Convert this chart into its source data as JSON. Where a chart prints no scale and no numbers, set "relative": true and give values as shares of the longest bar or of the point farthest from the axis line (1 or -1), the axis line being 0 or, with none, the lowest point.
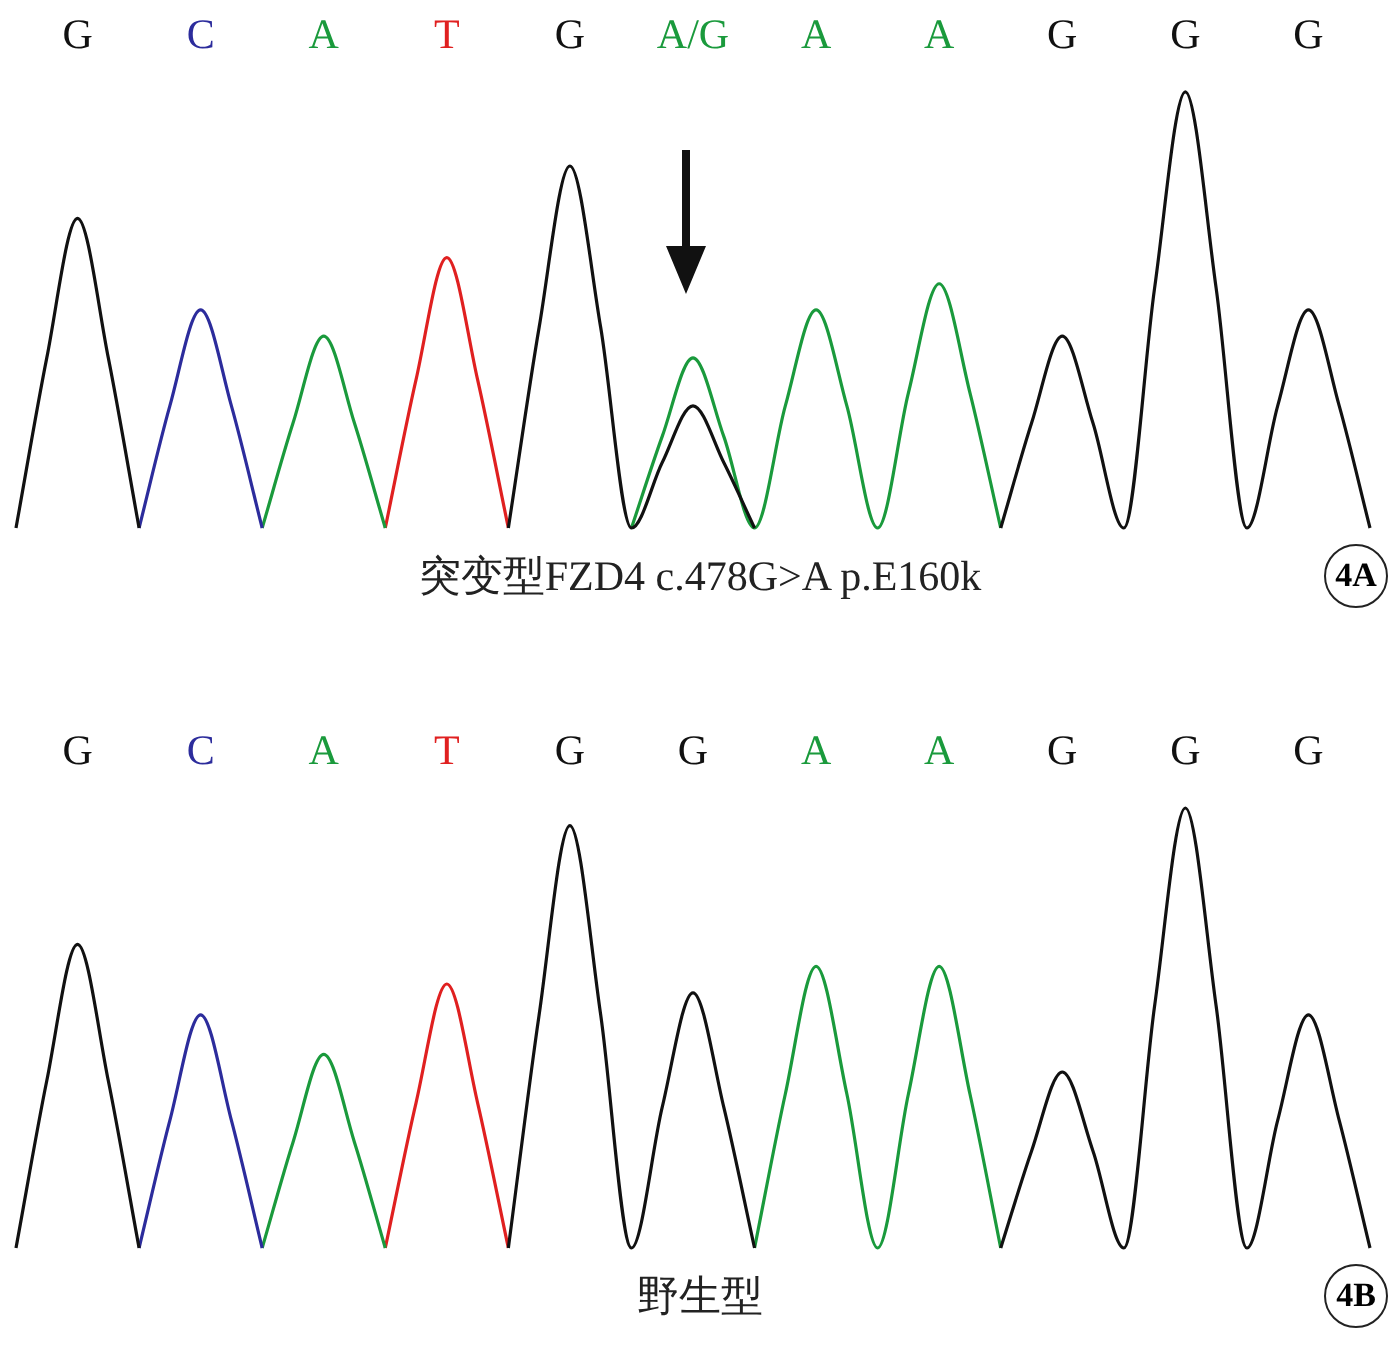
{
  "chart_data": [
    {
      "type": "line",
      "relative": true,
      "title": "4A",
      "tick_labels": "x",
      "grid": false,
      "legend": false,
      "marker": "none",
      "line_style": "solid",
      "annotations": [
        "突变型FZD4 c.478G>A p.E160k"
      ],
      "categories": [
        null,
        null,
        "G",
        null,
        null,
        null,
        "C",
        null,
        null,
        null,
        "A",
        null,
        null,
        null,
        "T",
        null,
        null,
        null,
        "G",
        null,
        null,
        null,
        "A/G",
        null,
        null,
        null,
        "A",
        null,
        null,
        null,
        "A",
        null,
        null,
        null,
        "G",
        null,
        null,
        null,
        "G",
        null,
        null,
        null,
        "G",
        null,
        null
      ],
      "series": [
        {
          "color": "#111111",
          "values": [
            0,
            0.39,
            0.71,
            0.39,
            0,
            null,
            null,
            null,
            null,
            null,
            null,
            null,
            null,
            null,
            null,
            null,
            0,
            0.46,
            0.83,
            0.46,
            0,
            0.15,
            0.28,
            0.15,
            0,
            null,
            null,
            null,
            null,
            null,
            null,
            null,
            0,
            0.24,
            0.44,
            0.24,
            0,
            0.55,
            1,
            0.55,
            0,
            0.28,
            0.5,
            0.28,
            0
          ]
        },
        {
          "color": "#2c2c9c",
          "values": [
            null,
            null,
            null,
            null,
            0,
            0.28,
            0.5,
            0.28,
            0,
            null,
            null,
            null,
            null,
            null,
            null,
            null,
            null,
            null,
            null,
            null,
            null,
            null,
            null,
            null,
            null,
            null,
            null,
            null,
            null,
            null,
            null,
            null,
            null,
            null,
            null,
            null,
            null,
            null,
            null,
            null,
            null,
            null,
            null,
            null,
            null
          ]
        },
        {
          "color": "#1a9a3c",
          "values": [
            null,
            null,
            null,
            null,
            null,
            null,
            null,
            null,
            0,
            0.24,
            0.44,
            0.24,
            0,
            null,
            null,
            null,
            null,
            null,
            null,
            null,
            0,
            0.21,
            0.39,
            0.21,
            0,
            0.28,
            0.5,
            0.28,
            0,
            0.31,
            0.56,
            0.31,
            0,
            null,
            null,
            null,
            null,
            null,
            null,
            null,
            null,
            null,
            null,
            null,
            null
          ]
        },
        {
          "color": "#e02020",
          "values": [
            null,
            null,
            null,
            null,
            null,
            null,
            null,
            null,
            null,
            null,
            null,
            null,
            0,
            0.34,
            0.62,
            0.34,
            0,
            null,
            null,
            null,
            null,
            null,
            null,
            null,
            null,
            null,
            null,
            null,
            null,
            null,
            null,
            null,
            null,
            null,
            null,
            null,
            null,
            null,
            null,
            null,
            null,
            null,
            null,
            null,
            null
          ]
        }
      ]
    },
    {
      "type": "line",
      "relative": true,
      "title": "4B",
      "tick_labels": "x",
      "grid": false,
      "legend": false,
      "marker": "none",
      "line_style": "solid",
      "annotations": [
        "野生型"
      ],
      "categories": [
        null,
        null,
        "G",
        null,
        null,
        null,
        "C",
        null,
        null,
        null,
        "A",
        null,
        null,
        null,
        "T",
        null,
        null,
        null,
        "G",
        null,
        null,
        null,
        "G",
        null,
        null,
        null,
        "A",
        null,
        null,
        null,
        "A",
        null,
        null,
        null,
        "G",
        null,
        null,
        null,
        "G",
        null,
        null,
        null,
        "G",
        null,
        null
      ],
      "series": [
        {
          "color": "#111111",
          "values": [
            0,
            0.38,
            0.69,
            0.38,
            0,
            null,
            null,
            null,
            null,
            null,
            null,
            null,
            null,
            null,
            null,
            null,
            0,
            0.53,
            0.96,
            0.53,
            0,
            0.32,
            0.58,
            0.32,
            0,
            null,
            null,
            null,
            null,
            null,
            null,
            null,
            0,
            0.22,
            0.4,
            0.22,
            0,
            0.55,
            1,
            0.55,
            0,
            0.29,
            0.53,
            0.29,
            0
          ]
        },
        {
          "color": "#2c2c9c",
          "values": [
            null,
            null,
            null,
            null,
            0,
            0.29,
            0.53,
            0.29,
            0,
            null,
            null,
            null,
            null,
            null,
            null,
            null,
            null,
            null,
            null,
            null,
            null,
            null,
            null,
            null,
            null,
            null,
            null,
            null,
            null,
            null,
            null,
            null,
            null,
            null,
            null,
            null,
            null,
            null,
            null,
            null,
            null,
            null,
            null,
            null,
            null
          ]
        },
        {
          "color": "#1a9a3c",
          "values": [
            null,
            null,
            null,
            null,
            null,
            null,
            null,
            null,
            0,
            0.24,
            0.44,
            0.24,
            0,
            null,
            null,
            null,
            null,
            null,
            null,
            null,
            null,
            null,
            null,
            null,
            0,
            0.35,
            0.64,
            0.35,
            0,
            0.35,
            0.64,
            0.35,
            0,
            null,
            null,
            null,
            null,
            null,
            null,
            null,
            null,
            null,
            null,
            null,
            null
          ]
        },
        {
          "color": "#e02020",
          "values": [
            null,
            null,
            null,
            null,
            null,
            null,
            null,
            null,
            null,
            null,
            null,
            null,
            0,
            0.33,
            0.6,
            0.33,
            0,
            null,
            null,
            null,
            null,
            null,
            null,
            null,
            null,
            null,
            null,
            null,
            null,
            null,
            null,
            null,
            null,
            null,
            null,
            null,
            null,
            null,
            null,
            null,
            null,
            null,
            null,
            null,
            null
          ]
        }
      ]
    }
  ]
}
